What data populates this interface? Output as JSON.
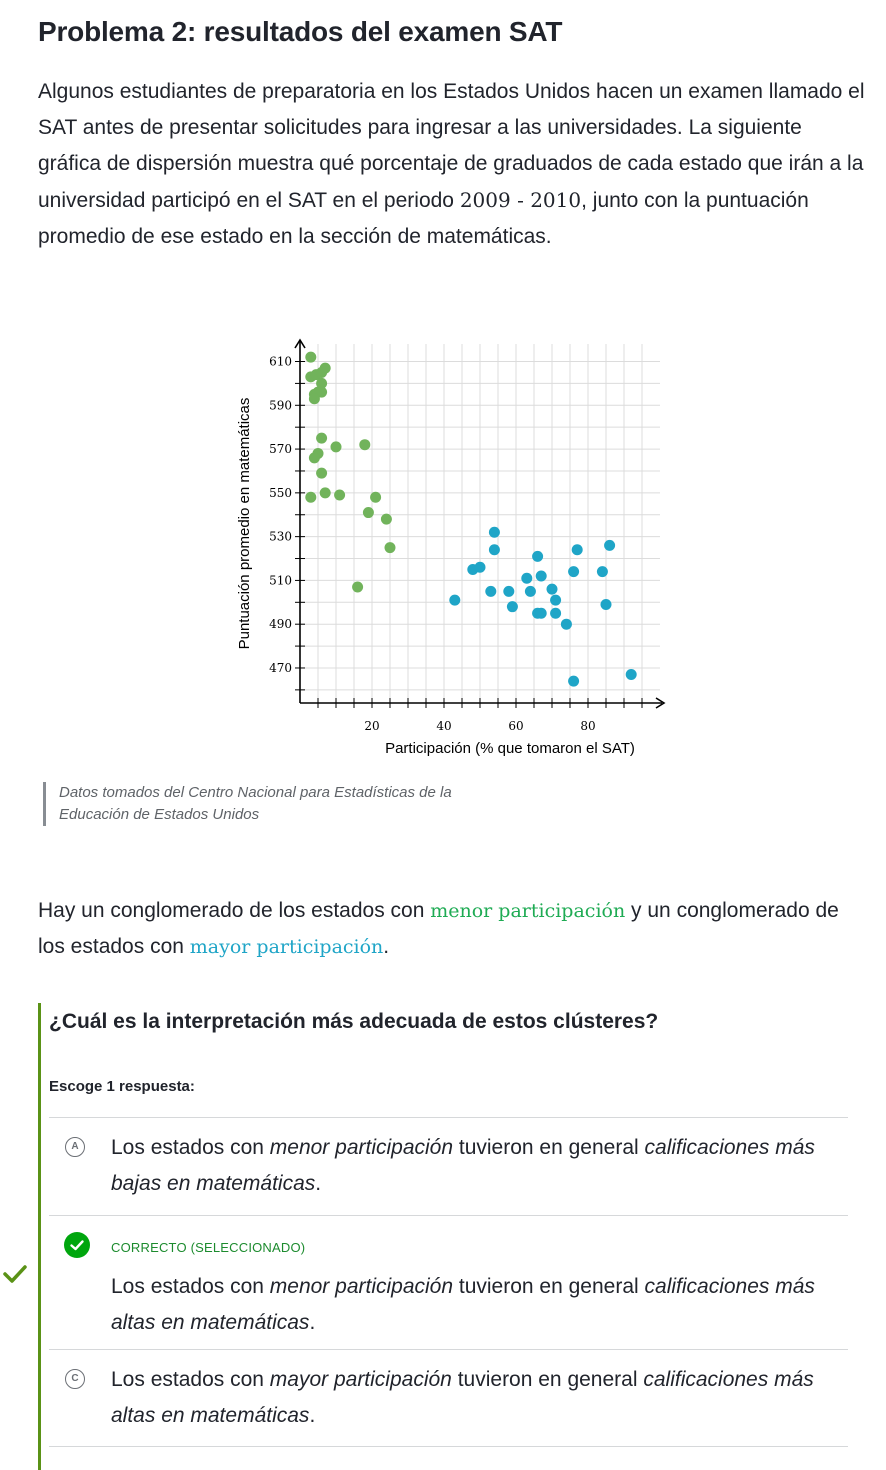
{
  "title": "Problema 2: resultados del examen SAT",
  "intro": {
    "part1": "Algunos estudiantes de preparatoria en los Estados Unidos hacen un examen llamado el SAT antes de presentar solicitudes para ingresar a las universidades. La siguiente gráfica de dispersión muestra qué porcentaje de graduados de cada estado que irán a la universidad participó en el SAT en el periodo ",
    "math": "2009 - 2010",
    "part2": ", junto con la puntuación promedio de ese estado en la sección de matemáticas."
  },
  "chart_data": {
    "type": "scatter",
    "xlabel": "Participación (% que tomaron el SAT)",
    "ylabel": "Puntuación promedio en matemáticas",
    "xlim": [
      0,
      100
    ],
    "ylim": [
      454,
      618
    ],
    "x_ticks": [
      20,
      40,
      60,
      80
    ],
    "y_ticks": [
      470,
      490,
      510,
      530,
      550,
      570,
      590,
      610
    ],
    "grid": true,
    "series": [
      {
        "color": "#71b35b",
        "points": [
          [
            3,
            612
          ],
          [
            3,
            603
          ],
          [
            4.5,
            604
          ],
          [
            6,
            605
          ],
          [
            7,
            607
          ],
          [
            6,
            600
          ],
          [
            4,
            595
          ],
          [
            5,
            596
          ],
          [
            6,
            596
          ],
          [
            4,
            593
          ],
          [
            6,
            575
          ],
          [
            10,
            571
          ],
          [
            18,
            572
          ],
          [
            5,
            568
          ],
          [
            4,
            566
          ],
          [
            6,
            559
          ],
          [
            3,
            548
          ],
          [
            7,
            550
          ],
          [
            11,
            549
          ],
          [
            21,
            548
          ],
          [
            19,
            541
          ],
          [
            24,
            538
          ],
          [
            25,
            525
          ],
          [
            16,
            507
          ]
        ]
      },
      {
        "color": "#1fa5c7",
        "points": [
          [
            54,
            532
          ],
          [
            54,
            524
          ],
          [
            86,
            526
          ],
          [
            77,
            524
          ],
          [
            66,
            521
          ],
          [
            48,
            515
          ],
          [
            50,
            516
          ],
          [
            76,
            514
          ],
          [
            84,
            514
          ],
          [
            63,
            511
          ],
          [
            67,
            512
          ],
          [
            53,
            505
          ],
          [
            58,
            505
          ],
          [
            64,
            505
          ],
          [
            70,
            506
          ],
          [
            43,
            501
          ],
          [
            59,
            498
          ],
          [
            71,
            501
          ],
          [
            85,
            499
          ],
          [
            66,
            495
          ],
          [
            67,
            495
          ],
          [
            71,
            495
          ],
          [
            74,
            490
          ],
          [
            92,
            467
          ],
          [
            76,
            464
          ]
        ]
      }
    ]
  },
  "source": "Datos tomados del Centro Nacional para Estadísticas de la Educación de Estados Unidos",
  "cluster": {
    "part1": "Hay un conglomerado de los estados con ",
    "low": "menor participación",
    "part2": " y un conglomerado de los estados con ",
    "high": "mayor participación",
    "part3": "."
  },
  "question": "¿Cuál es la interpretación más adecuada de estos clústeres?",
  "choose_label": "Escoge 1 respuesta:",
  "colors": {
    "low_cluster": "#71b35b",
    "high_cluster": "#1fa5c7",
    "correct": "#00a60e",
    "accent_bar": "#5a9216"
  },
  "choices": [
    {
      "letter": "A",
      "t1": "Los estados con ",
      "e1": "menor participación",
      "t2": " tuvieron en general ",
      "e2": "calificaciones más bajas en matemáticas",
      "t3": "."
    },
    {
      "status": "CORRECTO (SELECCIONADO)",
      "icon": "check-icon",
      "t1": "Los estados con ",
      "e1": "menor participación",
      "t2": " tuvieron en general ",
      "e2": "calificaciones más altas en matemáticas",
      "t3": "."
    },
    {
      "letter": "C",
      "t1": "Los estados con ",
      "e1": "mayor participación",
      "t2": " tuvieron en general ",
      "e2": "calificaciones más altas en matemáticas",
      "t3": "."
    }
  ]
}
